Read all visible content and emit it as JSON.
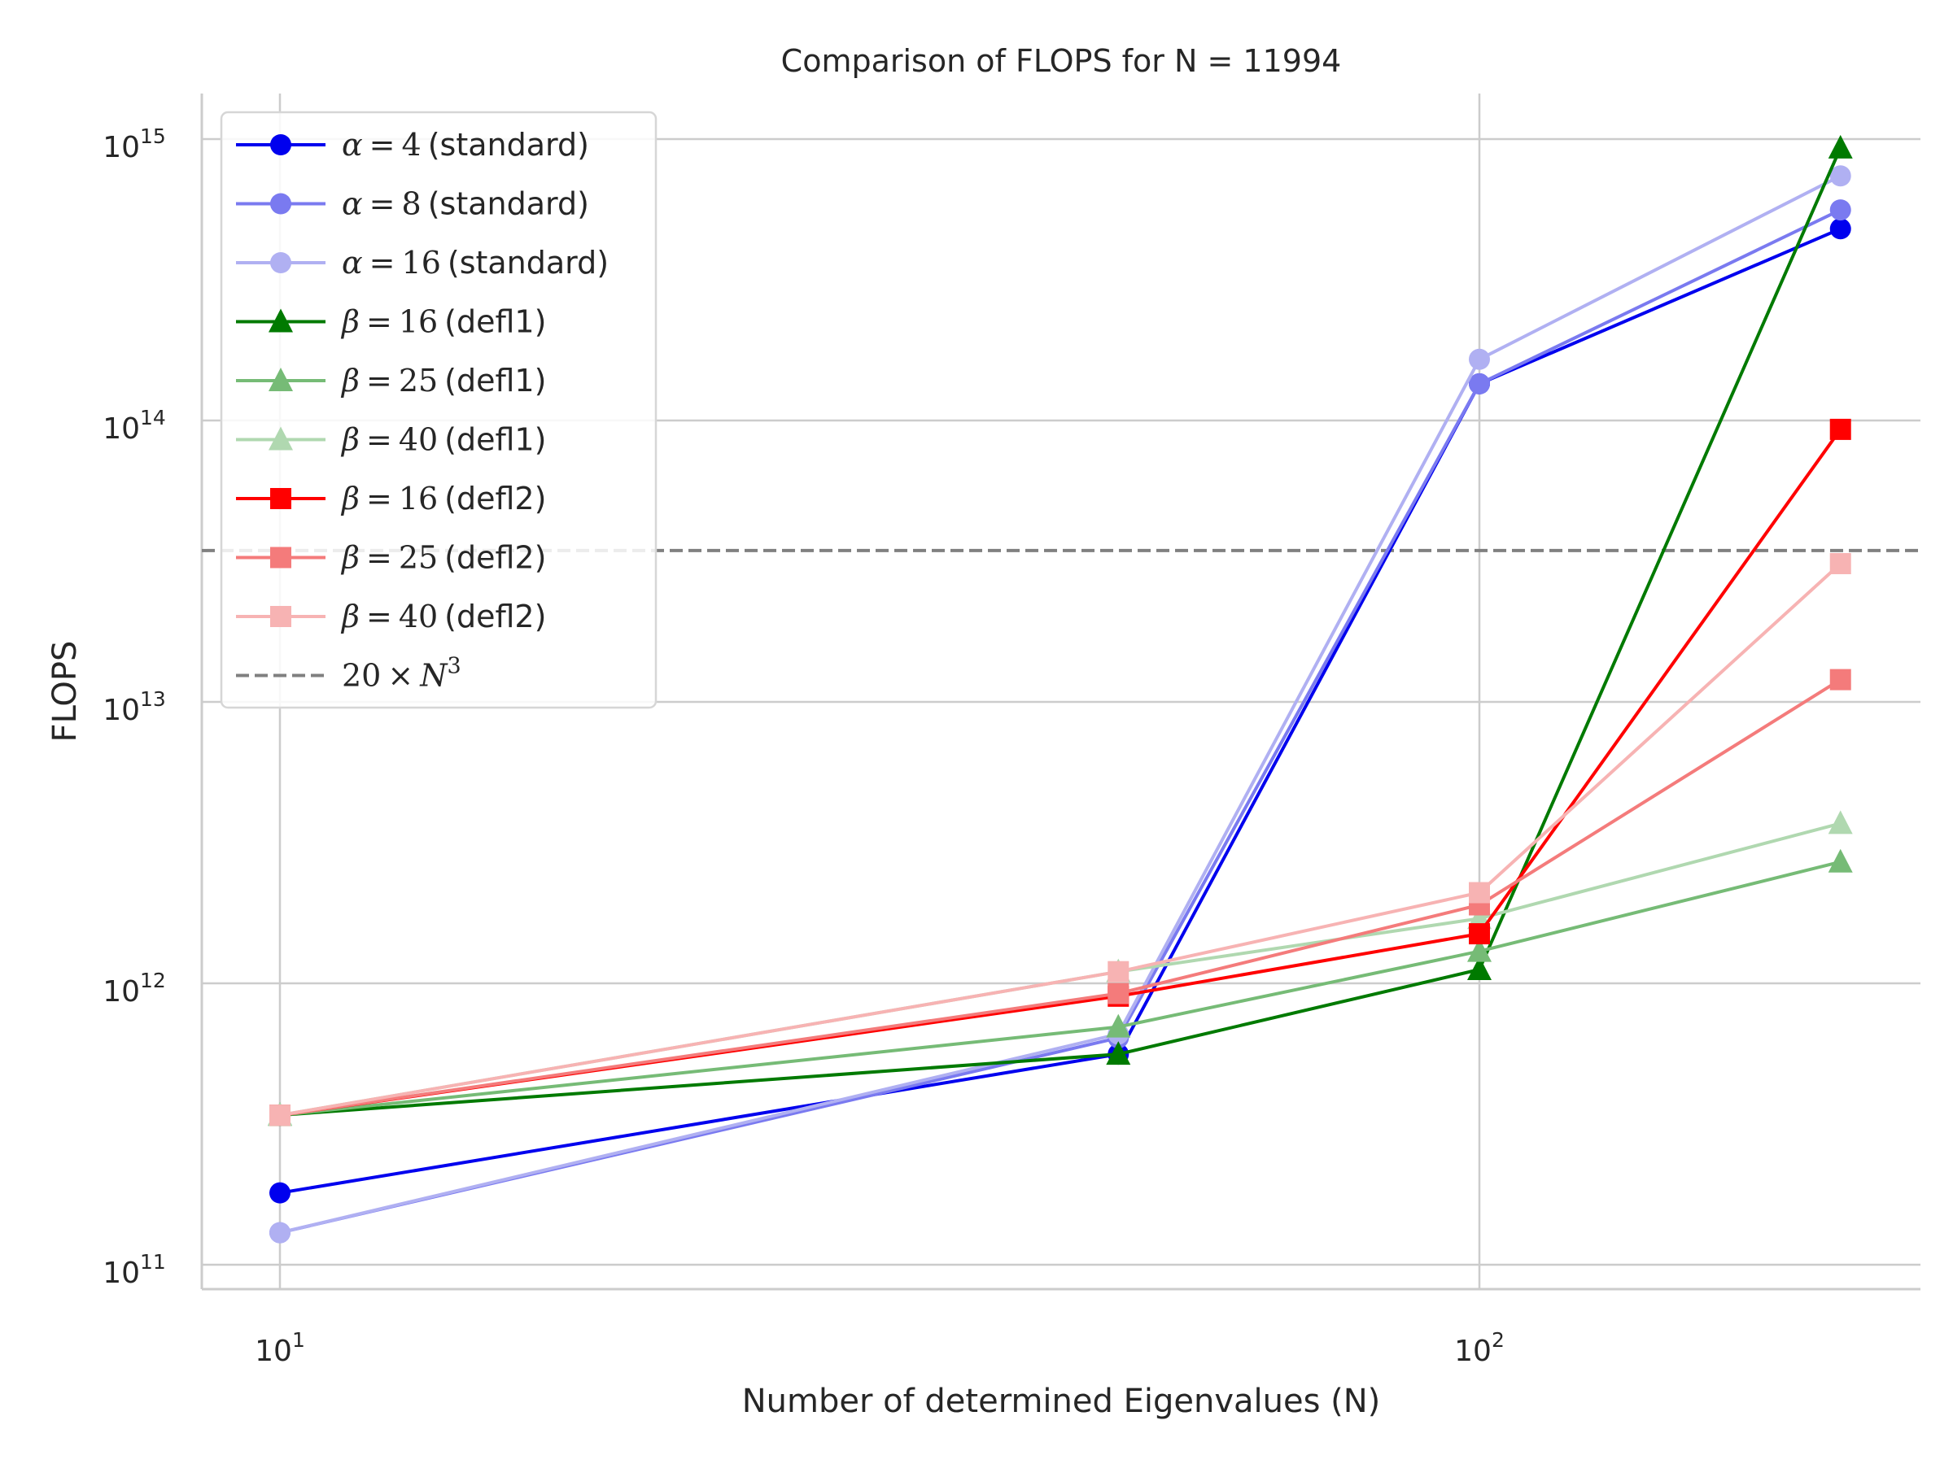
{
  "chart_data": {
    "type": "line",
    "title": "Comparison of FLOPS for N = 11994",
    "xlabel": "Number of determined Eigenvalues (N)",
    "ylabel": "FLOPS",
    "xscale": "log",
    "yscale": "log",
    "xlim": [
      8.5,
      260
    ],
    "ylim": [
      80000000000.0,
      1400000000000000.0
    ],
    "grid": true,
    "legend_position": "upper-left",
    "x": [
      10,
      50,
      100,
      200
    ],
    "x_ticks": [
      {
        "value": 10,
        "base": "10",
        "exp": "1"
      },
      {
        "value": 100,
        "base": "10",
        "exp": "2"
      }
    ],
    "y_ticks": [
      {
        "value": 100000000000.0,
        "base": "10",
        "exp": "11"
      },
      {
        "value": 1000000000000.0,
        "base": "10",
        "exp": "12"
      },
      {
        "value": 10000000000000.0,
        "base": "10",
        "exp": "13"
      },
      {
        "value": 100000000000000.0,
        "base": "10",
        "exp": "14"
      },
      {
        "value": 1000000000000000.0,
        "base": "10",
        "exp": "15"
      }
    ],
    "series": [
      {
        "name": "α = 4 (standard)",
        "var": "α",
        "num": "4",
        "suffix": "(standard)",
        "color": "#0000ee",
        "marker": "circle",
        "values": [
          180000000000.0,
          560000000000.0,
          135000000000000.0,
          480000000000000.0
        ]
      },
      {
        "name": "α = 8 (standard)",
        "var": "α",
        "num": "8",
        "suffix": "(standard)",
        "color": "#7a7af0",
        "marker": "circle",
        "values": [
          130000000000.0,
          640000000000.0,
          135000000000000.0,
          560000000000000.0
        ]
      },
      {
        "name": "α = 16 (standard)",
        "var": "α",
        "num": "16",
        "suffix": "(standard)",
        "color": "#b0b0f2",
        "marker": "circle",
        "values": [
          130000000000.0,
          660000000000.0,
          165000000000000.0,
          740000000000000.0
        ]
      },
      {
        "name": "β = 16 (defl1)",
        "var": "β",
        "num": "16",
        "suffix": "(defl1)",
        "color": "#007a00",
        "marker": "triangle",
        "values": [
          340000000000.0,
          560000000000.0,
          1120000000000.0,
          930000000000000.0
        ]
      },
      {
        "name": "β = 25 (defl1)",
        "var": "β",
        "num": "25",
        "suffix": "(defl1)",
        "color": "#76bb76",
        "marker": "triangle",
        "values": [
          340000000000.0,
          700000000000.0,
          1300000000000.0,
          2700000000000.0
        ]
      },
      {
        "name": "β = 40 (defl1)",
        "var": "β",
        "num": "40",
        "suffix": "(defl1)",
        "color": "#b0d8b0",
        "marker": "triangle",
        "values": [
          340000000000.0,
          1100000000000.0,
          1700000000000.0,
          3700000000000.0
        ]
      },
      {
        "name": "β = 16 (defl2)",
        "var": "β",
        "num": "16",
        "suffix": "(defl2)",
        "color": "#ff0000",
        "marker": "square",
        "values": [
          340000000000.0,
          900000000000.0,
          1500000000000.0,
          93000000000000.0
        ]
      },
      {
        "name": "β = 25 (defl2)",
        "var": "β",
        "num": "25",
        "suffix": "(defl2)",
        "color": "#f47b7b",
        "marker": "square",
        "values": [
          340000000000.0,
          920000000000.0,
          1900000000000.0,
          12000000000000.0
        ]
      },
      {
        "name": "β = 40 (defl2)",
        "var": "β",
        "num": "40",
        "suffix": "(defl2)",
        "color": "#f7b3b3",
        "marker": "square",
        "values": [
          340000000000.0,
          1100000000000.0,
          2100000000000.0,
          31000000000000.0
        ]
      }
    ],
    "reference_line": {
      "name": "20 × N³",
      "coef": "20",
      "times": "×",
      "var": "N",
      "exp": "3",
      "color": "#808080",
      "style": "dashed",
      "value": 34500000000000.0
    }
  }
}
